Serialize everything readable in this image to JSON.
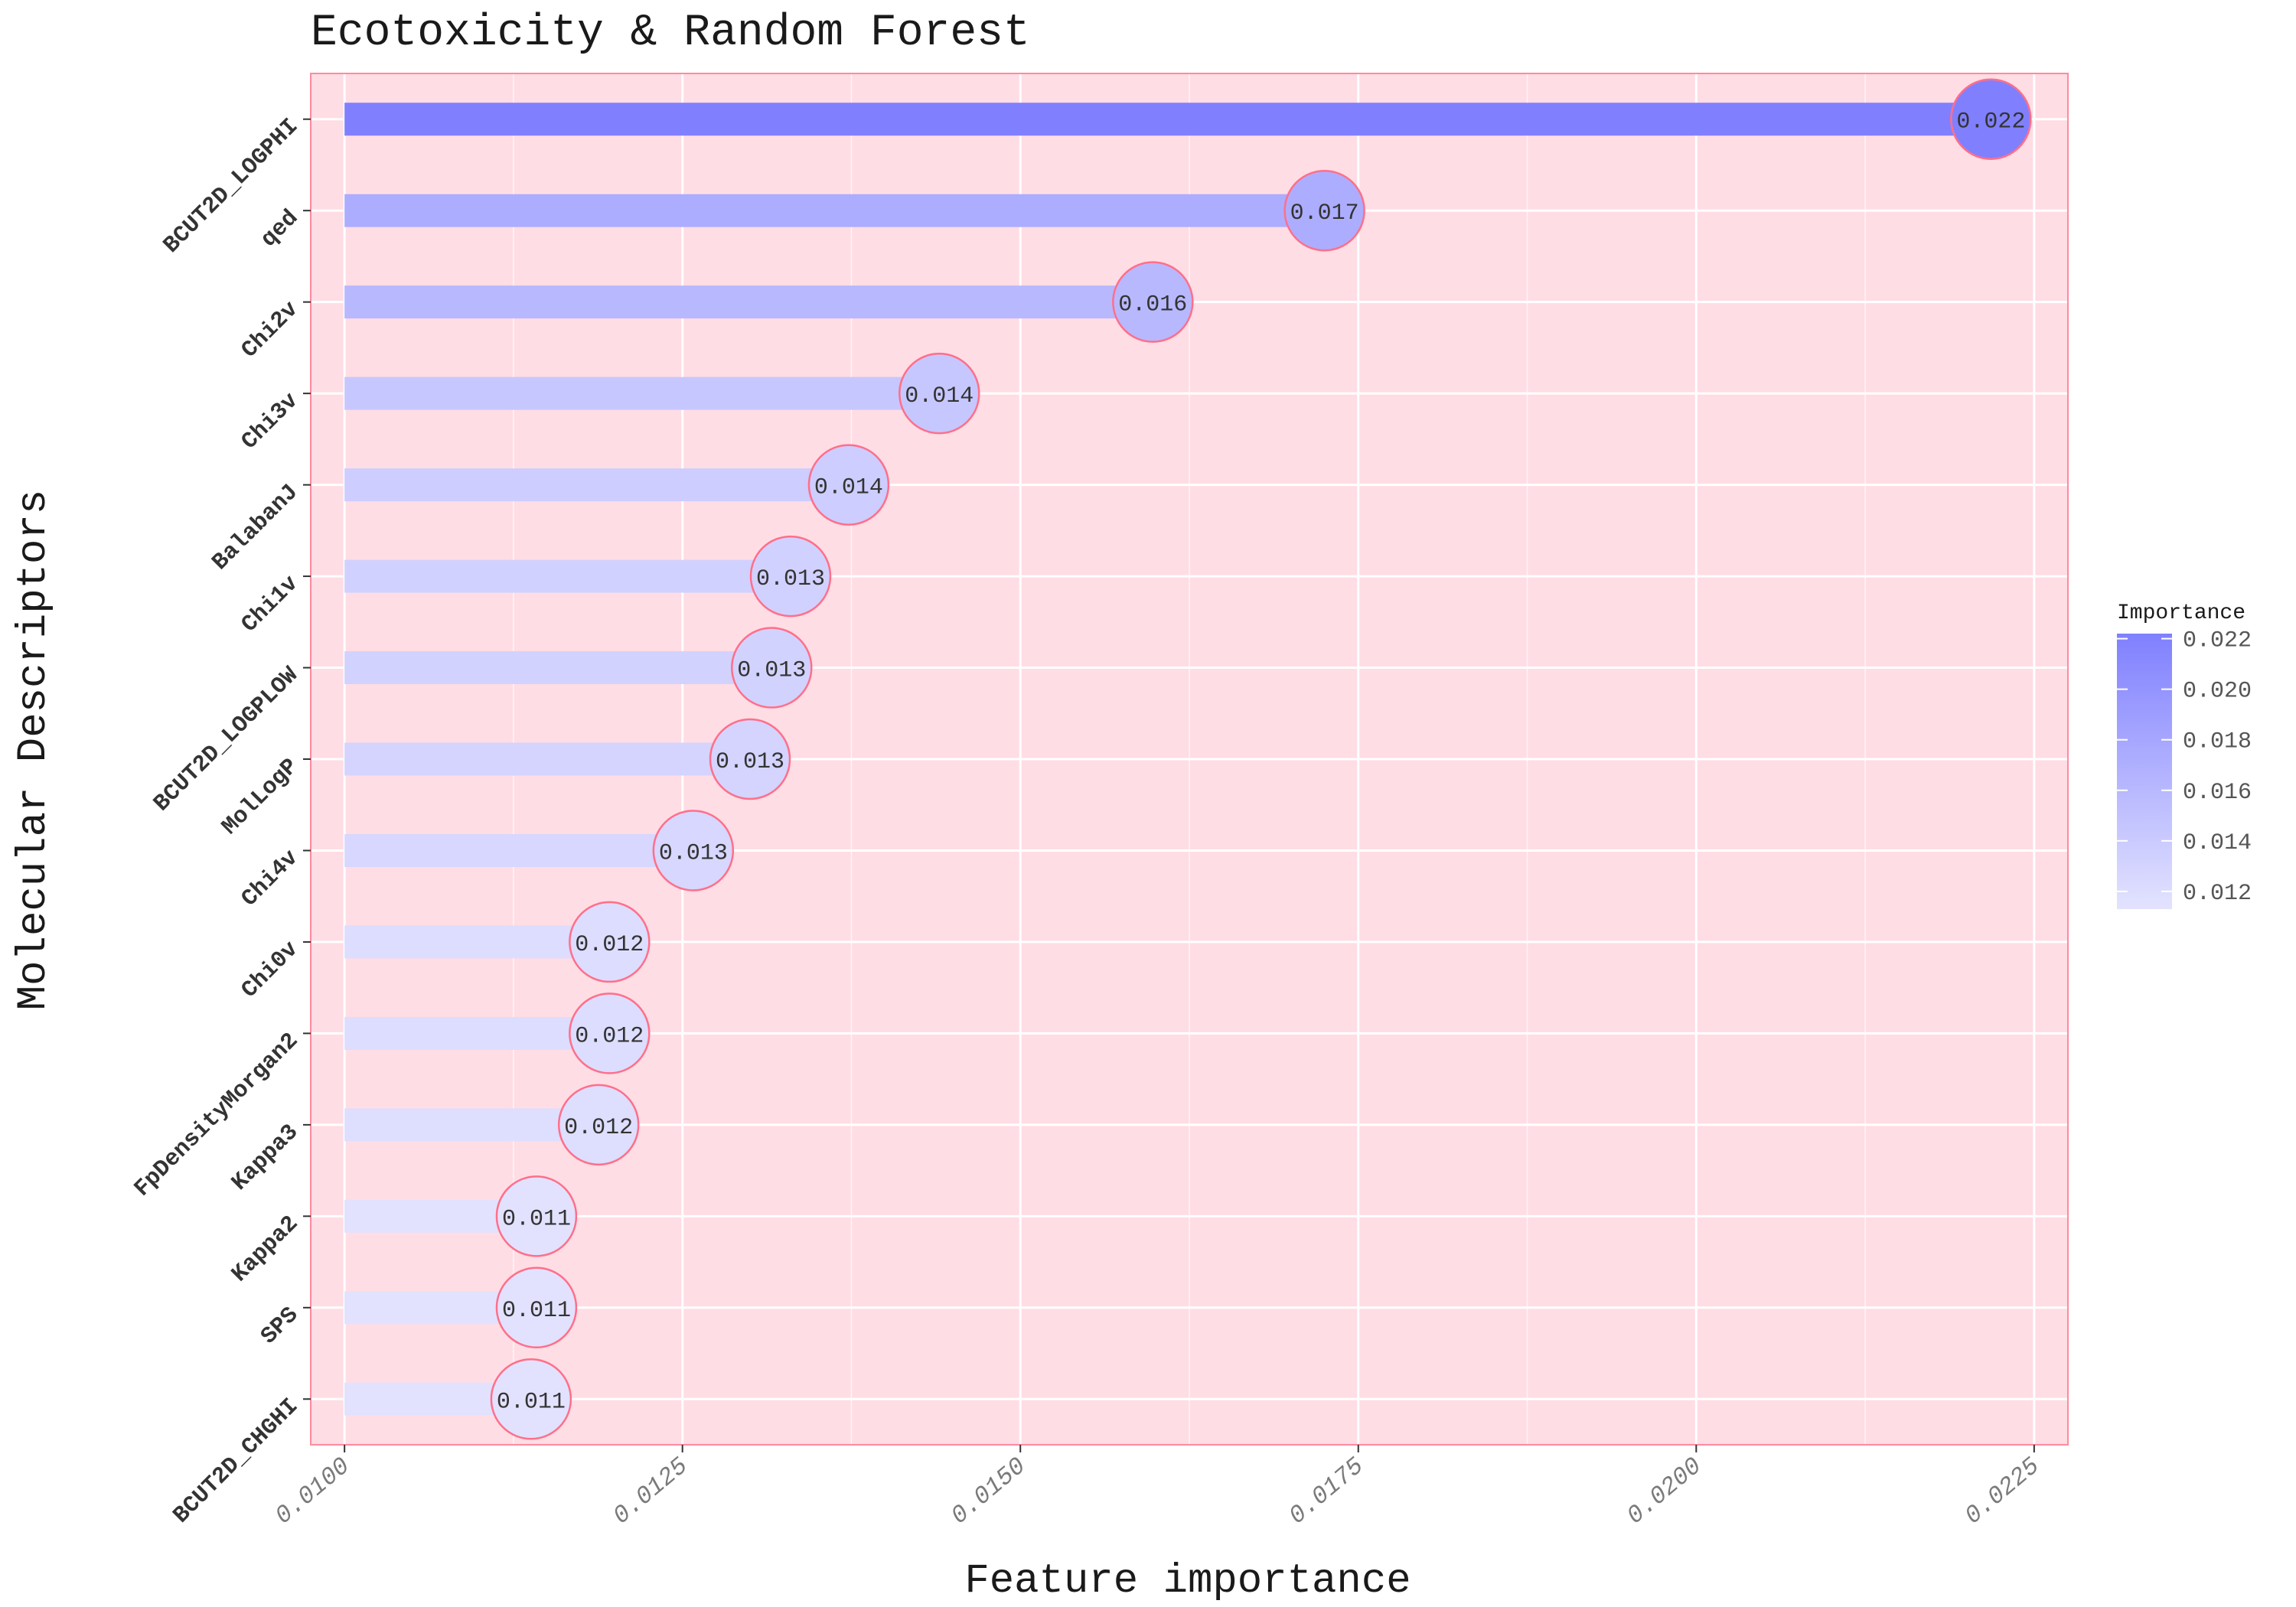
{
  "chart_data": {
    "type": "bar",
    "title": "Ecotoxicity & Random Forest",
    "xlabel": "Feature importance",
    "ylabel": "Molecular Descriptors",
    "xlim": [
      0.00975,
      0.02275
    ],
    "x_ticks": [
      "0.0100",
      "0.0125",
      "0.0150",
      "0.0175",
      "0.0200",
      "0.0225"
    ],
    "x_tick_values": [
      0.01,
      0.0125,
      0.015,
      0.0175,
      0.02,
      0.0225
    ],
    "categories": [
      "BCUT2D_LOGPHI",
      "qed",
      "Chi2v",
      "Chi3v",
      "BalabanJ",
      "Chi1v",
      "BCUT2D_LOGPLOW",
      "MolLogP",
      "Chi4v",
      "Chi0v",
      "FpDensityMorgan2",
      "Kappa3",
      "Kappa2",
      "SPS",
      "BCUT2D_CHGHI"
    ],
    "values": [
      0.02218,
      0.01725,
      0.01598,
      0.0144,
      0.01373,
      0.0133,
      0.01316,
      0.013,
      0.01258,
      0.01196,
      0.01196,
      0.01188,
      0.01142,
      0.01142,
      0.01138
    ],
    "data_labels": [
      "0.022",
      "0.017",
      "0.016",
      "0.014",
      "0.014",
      "0.013",
      "0.013",
      "0.013",
      "0.013",
      "0.012",
      "0.012",
      "0.012",
      "0.011",
      "0.011",
      "0.011"
    ],
    "legend": {
      "title": "Importance",
      "ticks": [
        "0.022",
        "0.020",
        "0.018",
        "0.016",
        "0.014",
        "0.012"
      ],
      "tick_values": [
        0.022,
        0.02,
        0.018,
        0.016,
        0.014,
        0.012
      ],
      "range": [
        0.0113,
        0.0222
      ],
      "placement": "right"
    },
    "colors": {
      "panel": "#ffdde4",
      "panel_border": "#ff8a9e",
      "grid": "#ffffff",
      "low": "#e3e3ff",
      "high": "#8080ff",
      "circle_stroke": "#ff6f8a",
      "label_text": "#333333"
    },
    "grid": true
  }
}
